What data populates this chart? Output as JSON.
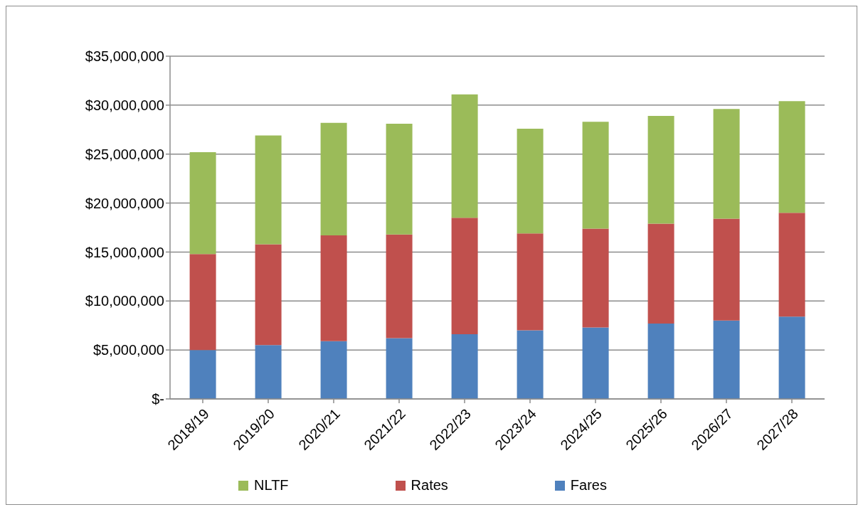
{
  "chart_data": {
    "type": "bar",
    "stacked": true,
    "categories": [
      "2018/19",
      "2019/20",
      "2020/21",
      "2021/22",
      "2022/23",
      "2023/24",
      "2024/25",
      "2025/26",
      "2026/27",
      "2027/28"
    ],
    "series": [
      {
        "name": "Fares",
        "color": "#4f81bd",
        "values": [
          5000000,
          5500000,
          5900000,
          6200000,
          6600000,
          7000000,
          7300000,
          7700000,
          8000000,
          8400000
        ]
      },
      {
        "name": "Rates",
        "color": "#c0504d",
        "values": [
          9800000,
          10300000,
          10800000,
          10600000,
          11900000,
          9900000,
          10100000,
          10200000,
          10400000,
          10600000
        ]
      },
      {
        "name": "NLTF",
        "color": "#9bbb59",
        "values": [
          10400000,
          11100000,
          11500000,
          11300000,
          12600000,
          10700000,
          10900000,
          11000000,
          11200000,
          11400000
        ]
      }
    ],
    "ylim": [
      0,
      35000000
    ],
    "yticks": [
      {
        "value": 0,
        "label": "$-"
      },
      {
        "value": 5000000,
        "label": "$5,000,000"
      },
      {
        "value": 10000000,
        "label": "$10,000,000"
      },
      {
        "value": 15000000,
        "label": "$15,000,000"
      },
      {
        "value": 20000000,
        "label": "$20,000,000"
      },
      {
        "value": 25000000,
        "label": "$25,000,000"
      },
      {
        "value": 30000000,
        "label": "$30,000,000"
      },
      {
        "value": 35000000,
        "label": "$35,000,000"
      }
    ],
    "grid": "y",
    "legend": "bottom"
  }
}
